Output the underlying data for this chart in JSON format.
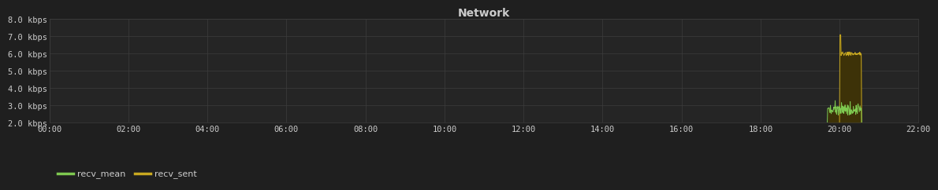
{
  "title": "Network",
  "background_color": "#1f1f1f",
  "plot_bg_color": "#252525",
  "grid_color": "#3d3d3d",
  "text_color": "#cccccc",
  "ylim": [
    2.0,
    8.0
  ],
  "yticks": [
    2.0,
    3.0,
    4.0,
    5.0,
    6.0,
    7.0,
    8.0
  ],
  "ytick_labels": [
    "2.0 kbps",
    "3.0 kbps",
    "4.0 kbps",
    "5.0 kbps",
    "6.0 kbps",
    "7.0 kbps",
    "8.0 kbps"
  ],
  "xtick_labels": [
    "00:00",
    "02:00",
    "04:00",
    "06:00",
    "08:00",
    "10:00",
    "12:00",
    "14:00",
    "16:00",
    "18:00",
    "20:00",
    "22:00"
  ],
  "xlim": [
    0,
    22
  ],
  "recv_mean_color": "#7ec850",
  "recv_sent_color": "#c8a820",
  "fill_color": "#3d3208",
  "legend_labels": [
    "recv_mean",
    "recv_sent"
  ],
  "spike_start_h": 20.0,
  "spike_end_h": 20.55,
  "spike_peak": 7.1,
  "spike_settle": 6.0,
  "mean_level": 2.65
}
